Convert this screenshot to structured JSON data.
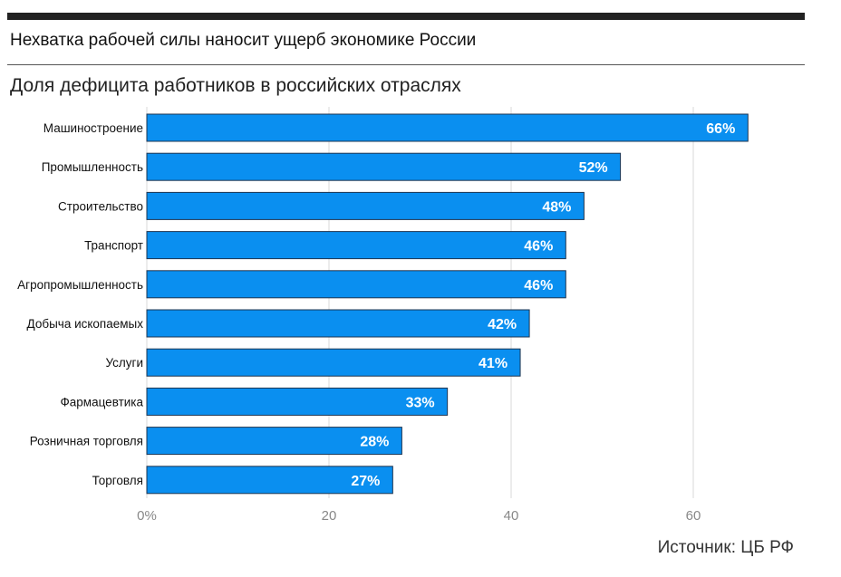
{
  "header": {
    "title": "Нехватка рабочей силы наносит ущерб экономике России",
    "subtitle": "Доля дефицита работников в российских отраслях"
  },
  "source": "Источник: ЦБ РФ",
  "colors": {
    "bar": "#0a8ff0",
    "bar_edge": "#1f3550",
    "grid": "#d9d9d9",
    "value_text": "#ffffff"
  },
  "chart_data": {
    "type": "bar",
    "orientation": "horizontal",
    "categories": [
      "Машиностроение",
      "Промышленность",
      "Строительство",
      "Транспорт",
      "Агропромышленность",
      "Добыча ископаемых",
      "Услуги",
      "Фармацевтика",
      "Розничная торговля",
      "Торговля"
    ],
    "values": [
      66,
      52,
      48,
      46,
      46,
      42,
      41,
      33,
      28,
      27
    ],
    "data_labels": [
      "66%",
      "52%",
      "48%",
      "46%",
      "46%",
      "42%",
      "41%",
      "33%",
      "28%",
      "27%"
    ],
    "xlim": [
      0,
      70
    ],
    "xticks": [
      0,
      20,
      40,
      60
    ],
    "xtick_labels": [
      "0%",
      "20",
      "40",
      "60"
    ],
    "grid": true,
    "title": "",
    "xlabel": "",
    "ylabel": ""
  }
}
